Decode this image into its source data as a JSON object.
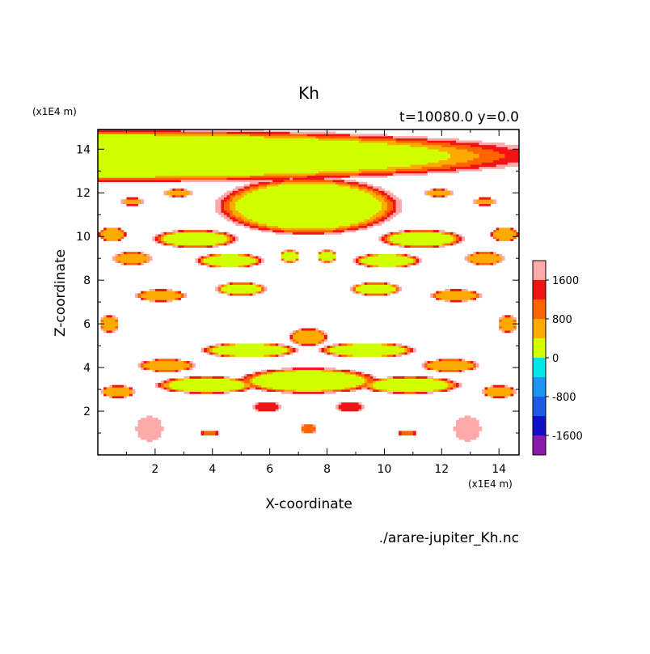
{
  "chart_data": {
    "type": "heatmap",
    "title": "Kh",
    "subtitle": "t=10080.0 y=0.0",
    "xlabel": "X-coordinate",
    "ylabel": "Z-coordinate",
    "x_unit": "(x1E4 m)",
    "y_unit": "(x1E4 m)",
    "footer": "./arare-jupiter_Kh.nc",
    "xlim": [
      0,
      14.7
    ],
    "ylim": [
      0,
      14.9
    ],
    "xticks": [
      2,
      4,
      6,
      8,
      10,
      12,
      14
    ],
    "yticks": [
      2,
      4,
      6,
      8,
      10,
      12,
      14
    ],
    "colorbar": {
      "levels": [
        -2000,
        -1600,
        -1200,
        -800,
        -400,
        0,
        400,
        800,
        1200,
        1600,
        2000
      ],
      "colors": [
        "#8a1aaa",
        "#1010c8",
        "#1e5ae6",
        "#1e96f0",
        "#00e6e6",
        "#d2ff00",
        "#ffaa00",
        "#ff6400",
        "#f01414",
        "#ffaaaa"
      ],
      "tick_labels": [
        "-1600",
        "-800",
        "0",
        "800",
        "1600"
      ],
      "tick_values": [
        -1600,
        -800,
        0,
        800,
        1600
      ]
    },
    "field": {
      "background_value": 2100,
      "blobs": [
        {
          "x": 0,
          "z": 13.7,
          "rx": 16,
          "rz": 1.25,
          "v": 200
        },
        {
          "x": 7.35,
          "z": 11.4,
          "rx": 3.3,
          "rz": 1.35,
          "v": 200
        },
        {
          "x": 3.4,
          "z": 9.9,
          "rx": 1.5,
          "rz": 0.42,
          "v": 300
        },
        {
          "x": 11.3,
          "z": 9.9,
          "rx": 1.5,
          "rz": 0.42,
          "v": 300
        },
        {
          "x": 0.5,
          "z": 10.1,
          "rx": 0.5,
          "rz": 0.35,
          "v": 400
        },
        {
          "x": 14.2,
          "z": 10.1,
          "rx": 0.5,
          "rz": 0.35,
          "v": 400
        },
        {
          "x": 1.2,
          "z": 11.6,
          "rx": 0.4,
          "rz": 0.18,
          "v": 700
        },
        {
          "x": 2.8,
          "z": 12.0,
          "rx": 0.5,
          "rz": 0.18,
          "v": 700
        },
        {
          "x": 11.9,
          "z": 12.0,
          "rx": 0.5,
          "rz": 0.18,
          "v": 700
        },
        {
          "x": 13.5,
          "z": 11.6,
          "rx": 0.4,
          "rz": 0.18,
          "v": 700
        },
        {
          "x": 4.6,
          "z": 8.9,
          "rx": 1.2,
          "rz": 0.35,
          "v": 300
        },
        {
          "x": 10.1,
          "z": 8.9,
          "rx": 1.2,
          "rz": 0.35,
          "v": 300
        },
        {
          "x": 2.2,
          "z": 7.3,
          "rx": 0.9,
          "rz": 0.28,
          "v": 400
        },
        {
          "x": 12.5,
          "z": 7.3,
          "rx": 0.9,
          "rz": 0.28,
          "v": 400
        },
        {
          "x": 5.0,
          "z": 7.6,
          "rx": 0.9,
          "rz": 0.3,
          "v": 300
        },
        {
          "x": 9.7,
          "z": 7.6,
          "rx": 0.9,
          "rz": 0.3,
          "v": 300
        },
        {
          "x": 0.4,
          "z": 6.0,
          "rx": 0.35,
          "rz": 0.4,
          "v": 500
        },
        {
          "x": 14.3,
          "z": 6.0,
          "rx": 0.35,
          "rz": 0.4,
          "v": 500
        },
        {
          "x": 5.3,
          "z": 4.8,
          "rx": 1.7,
          "rz": 0.35,
          "v": 200
        },
        {
          "x": 9.4,
          "z": 4.8,
          "rx": 1.7,
          "rz": 0.35,
          "v": 200
        },
        {
          "x": 2.4,
          "z": 4.1,
          "rx": 1.0,
          "rz": 0.3,
          "v": 400
        },
        {
          "x": 12.3,
          "z": 4.1,
          "rx": 1.0,
          "rz": 0.3,
          "v": 400
        },
        {
          "x": 7.35,
          "z": 3.4,
          "rx": 2.5,
          "rz": 0.6,
          "v": 200
        },
        {
          "x": 3.8,
          "z": 3.2,
          "rx": 1.8,
          "rz": 0.4,
          "v": 300
        },
        {
          "x": 10.9,
          "z": 3.2,
          "rx": 1.8,
          "rz": 0.4,
          "v": 300
        },
        {
          "x": 0.7,
          "z": 2.9,
          "rx": 0.6,
          "rz": 0.28,
          "v": 400
        },
        {
          "x": 14.0,
          "z": 2.9,
          "rx": 0.6,
          "rz": 0.28,
          "v": 400
        },
        {
          "x": 7.35,
          "z": 5.4,
          "rx": 0.7,
          "rz": 0.4,
          "v": 600
        },
        {
          "x": 7.35,
          "z": 1.2,
          "rx": 0.3,
          "rz": 0.22,
          "v": 900
        },
        {
          "x": 3.9,
          "z": 1.0,
          "rx": 0.3,
          "rz": 0.15,
          "v": 900
        },
        {
          "x": 10.8,
          "z": 1.0,
          "rx": 0.3,
          "rz": 0.15,
          "v": 900
        },
        {
          "x": 1.8,
          "z": 1.2,
          "rx": 0.5,
          "rz": 0.6,
          "v": 1750
        },
        {
          "x": 12.9,
          "z": 1.2,
          "rx": 0.5,
          "rz": 0.6,
          "v": 1750
        },
        {
          "x": 5.9,
          "z": 2.2,
          "rx": 0.5,
          "rz": 0.25,
          "v": 1200
        },
        {
          "x": 8.8,
          "z": 2.2,
          "rx": 0.5,
          "rz": 0.25,
          "v": 1200
        },
        {
          "x": 6.7,
          "z": 9.1,
          "rx": 0.35,
          "rz": 0.3,
          "v": 300
        },
        {
          "x": 8.0,
          "z": 9.1,
          "rx": 0.35,
          "rz": 0.3,
          "v": 300
        },
        {
          "x": 1.2,
          "z": 9.0,
          "rx": 0.7,
          "rz": 0.3,
          "v": 400
        },
        {
          "x": 13.5,
          "z": 9.0,
          "rx": 0.7,
          "rz": 0.3,
          "v": 400
        }
      ]
    }
  }
}
